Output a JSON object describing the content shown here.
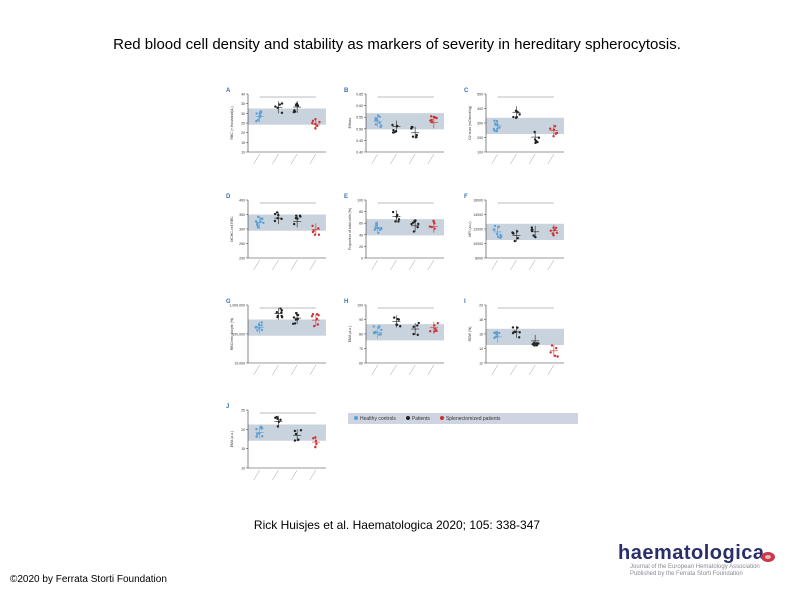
{
  "slide": {
    "title": "Red blood cell density and stability as markers of severity in hereditary spherocytosis.",
    "citation": "Rick Huisjes et al. Haematologica 2020; 105: 338-347",
    "copyright": "©2020 by Ferrata Storti Foundation"
  },
  "logo": {
    "brand": "haematologica",
    "tagline_1": "Journal of the European Hematology Association",
    "tagline_2": "Published by the Ferrata Storti Foundation"
  },
  "figure": {
    "legend": [
      "Healthy controls",
      "Patients",
      "Splenectomized patients"
    ],
    "colors": {
      "healthy": "#5aa0d8",
      "patient": "#222222",
      "splenectomized": "#d03030",
      "band": "#c9d3dd",
      "panel_letter": "#3b6fb6"
    },
    "panels": [
      {
        "letter": "A",
        "ylabel": "RBC (× thousand/μL)",
        "yticks": [
          "40",
          "35",
          "30",
          "25",
          "20",
          "15",
          "10"
        ]
      },
      {
        "letter": "B",
        "ylabel": "Elfmax",
        "yticks": [
          "0.65",
          "0.60",
          "0.55",
          "0.50",
          "0.45",
          "0.40"
        ]
      },
      {
        "letter": "C",
        "ylabel": "O2 scan (mOsmol/kg)",
        "yticks": [
          "500",
          "400",
          "300",
          "200",
          "100"
        ]
      },
      {
        "letter": "D",
        "ylabel": "MCHC-cell RBC",
        "yticks": [
          "400",
          "350",
          "300",
          "250",
          "200"
        ]
      },
      {
        "letter": "E",
        "ylabel": "Proportion of total cells (%)",
        "yticks": [
          "100",
          "80",
          "60",
          "40",
          "20",
          "0"
        ]
      },
      {
        "letter": "F",
        "ylabel": "MFI (a.u.)",
        "yticks": [
          "16000",
          "14000",
          "12000",
          "10000",
          "8000"
        ]
      },
      {
        "letter": "G",
        "ylabel": "RBC/reticulocyte (%)",
        "yticks": [
          "1,000,000",
          "100,000",
          "10,000"
        ]
      },
      {
        "letter": "H",
        "ylabel": "EMA (a.u.)",
        "yticks": [
          "100",
          "90",
          "80",
          "70",
          "60"
        ]
      },
      {
        "letter": "I",
        "ylabel": "RDW (%)",
        "yticks": [
          "20",
          "18",
          "16",
          "14",
          "12"
        ]
      },
      {
        "letter": "J",
        "ylabel": "EMA (a.u.)",
        "yticks": [
          "25",
          "20",
          "15",
          "10"
        ]
      }
    ]
  }
}
